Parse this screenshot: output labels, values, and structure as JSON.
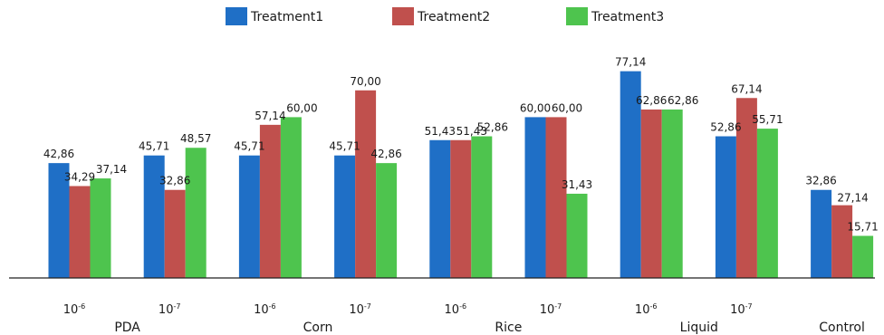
{
  "chart_data": {
    "type": "bar",
    "title": "",
    "xlabel": "",
    "ylabel": "",
    "legend_position": "top-center",
    "grid": false,
    "ylim": [
      0,
      80
    ],
    "groups": [
      {
        "label": "PDA",
        "categories": [
          {
            "base": "10",
            "exp": "-6"
          },
          {
            "base": "10",
            "exp": "-7"
          }
        ]
      },
      {
        "label": "Corn",
        "categories": [
          {
            "base": "10",
            "exp": "-6"
          },
          {
            "base": "10",
            "exp": "-7"
          }
        ]
      },
      {
        "label": "Rice",
        "categories": [
          {
            "base": "10",
            "exp": "-6"
          },
          {
            "base": "10",
            "exp": "-7"
          }
        ]
      },
      {
        "label": "Liquid",
        "categories": [
          {
            "base": "10",
            "exp": "-6"
          },
          {
            "base": "10",
            "exp": "-7"
          }
        ]
      },
      {
        "label": "Control",
        "categories": [
          {
            "base": "",
            "exp": ""
          }
        ]
      }
    ],
    "series": [
      {
        "name": "Treatment1",
        "color": "#1f6fc6",
        "values": [
          42.86,
          45.71,
          45.71,
          45.71,
          51.43,
          60.0,
          77.14,
          52.86,
          32.86
        ],
        "labels": [
          "42,86",
          "45,71",
          "45,71",
          "45,71",
          "51,43",
          "60,00",
          "77,14",
          "52,86",
          "32,86"
        ]
      },
      {
        "name": "Treatment2",
        "color": "#c0504d",
        "values": [
          34.29,
          32.86,
          57.14,
          70.0,
          51.43,
          60.0,
          62.86,
          67.14,
          27.14
        ],
        "labels": [
          "34,29",
          "32,86",
          "57,14",
          "70,00",
          "51,43",
          "60,00",
          "62,86",
          "67,14",
          "27,14"
        ]
      },
      {
        "name": "Treatment3",
        "color": "#4ec44e",
        "values": [
          37.14,
          48.57,
          60.0,
          42.86,
          52.86,
          31.43,
          62.86,
          55.71,
          15.71
        ],
        "labels": [
          "37,14",
          "48,57",
          "60,00",
          "42,86",
          "52,86",
          "31,43",
          "62,86",
          "55,71",
          "15,71"
        ]
      }
    ]
  }
}
